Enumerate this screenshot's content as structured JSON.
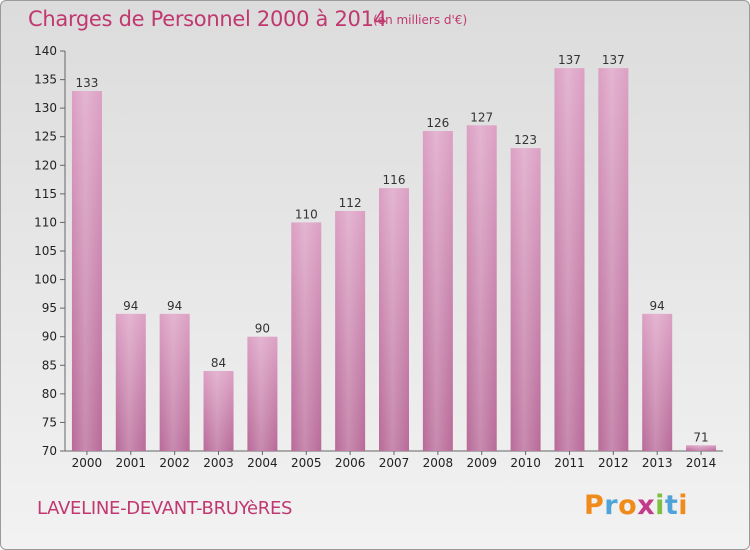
{
  "chart_data": {
    "type": "bar",
    "title": "Charges de Personnel 2000 à 2014",
    "subtitle": "(en milliers d'€)",
    "categories": [
      "2000",
      "2001",
      "2002",
      "2003",
      "2004",
      "2005",
      "2006",
      "2007",
      "2008",
      "2009",
      "2010",
      "2011",
      "2012",
      "2013",
      "2014"
    ],
    "values": [
      133,
      94,
      94,
      84,
      90,
      110,
      112,
      116,
      126,
      127,
      123,
      137,
      137,
      94,
      71
    ],
    "ylim": [
      70,
      140
    ],
    "yticks": [
      70,
      75,
      80,
      85,
      90,
      95,
      100,
      105,
      110,
      115,
      120,
      125,
      130,
      135,
      140
    ],
    "xlabel": "",
    "ylabel": "",
    "grid": false,
    "bar_color": "#cc7aa8"
  },
  "footer": {
    "commune": "LAVELINE-DEVANT-BRUYèRES",
    "logo": [
      "P",
      "r",
      "o",
      "x",
      "i",
      "t",
      "i"
    ],
    "logo_colors": [
      "#f08a1a",
      "#4fa3d8",
      "#f08a1a",
      "#c33a8a",
      "#7fbf3f",
      "#4fa3d8",
      "#f08a1a"
    ]
  },
  "colors": {
    "accent": "#c0386f"
  }
}
